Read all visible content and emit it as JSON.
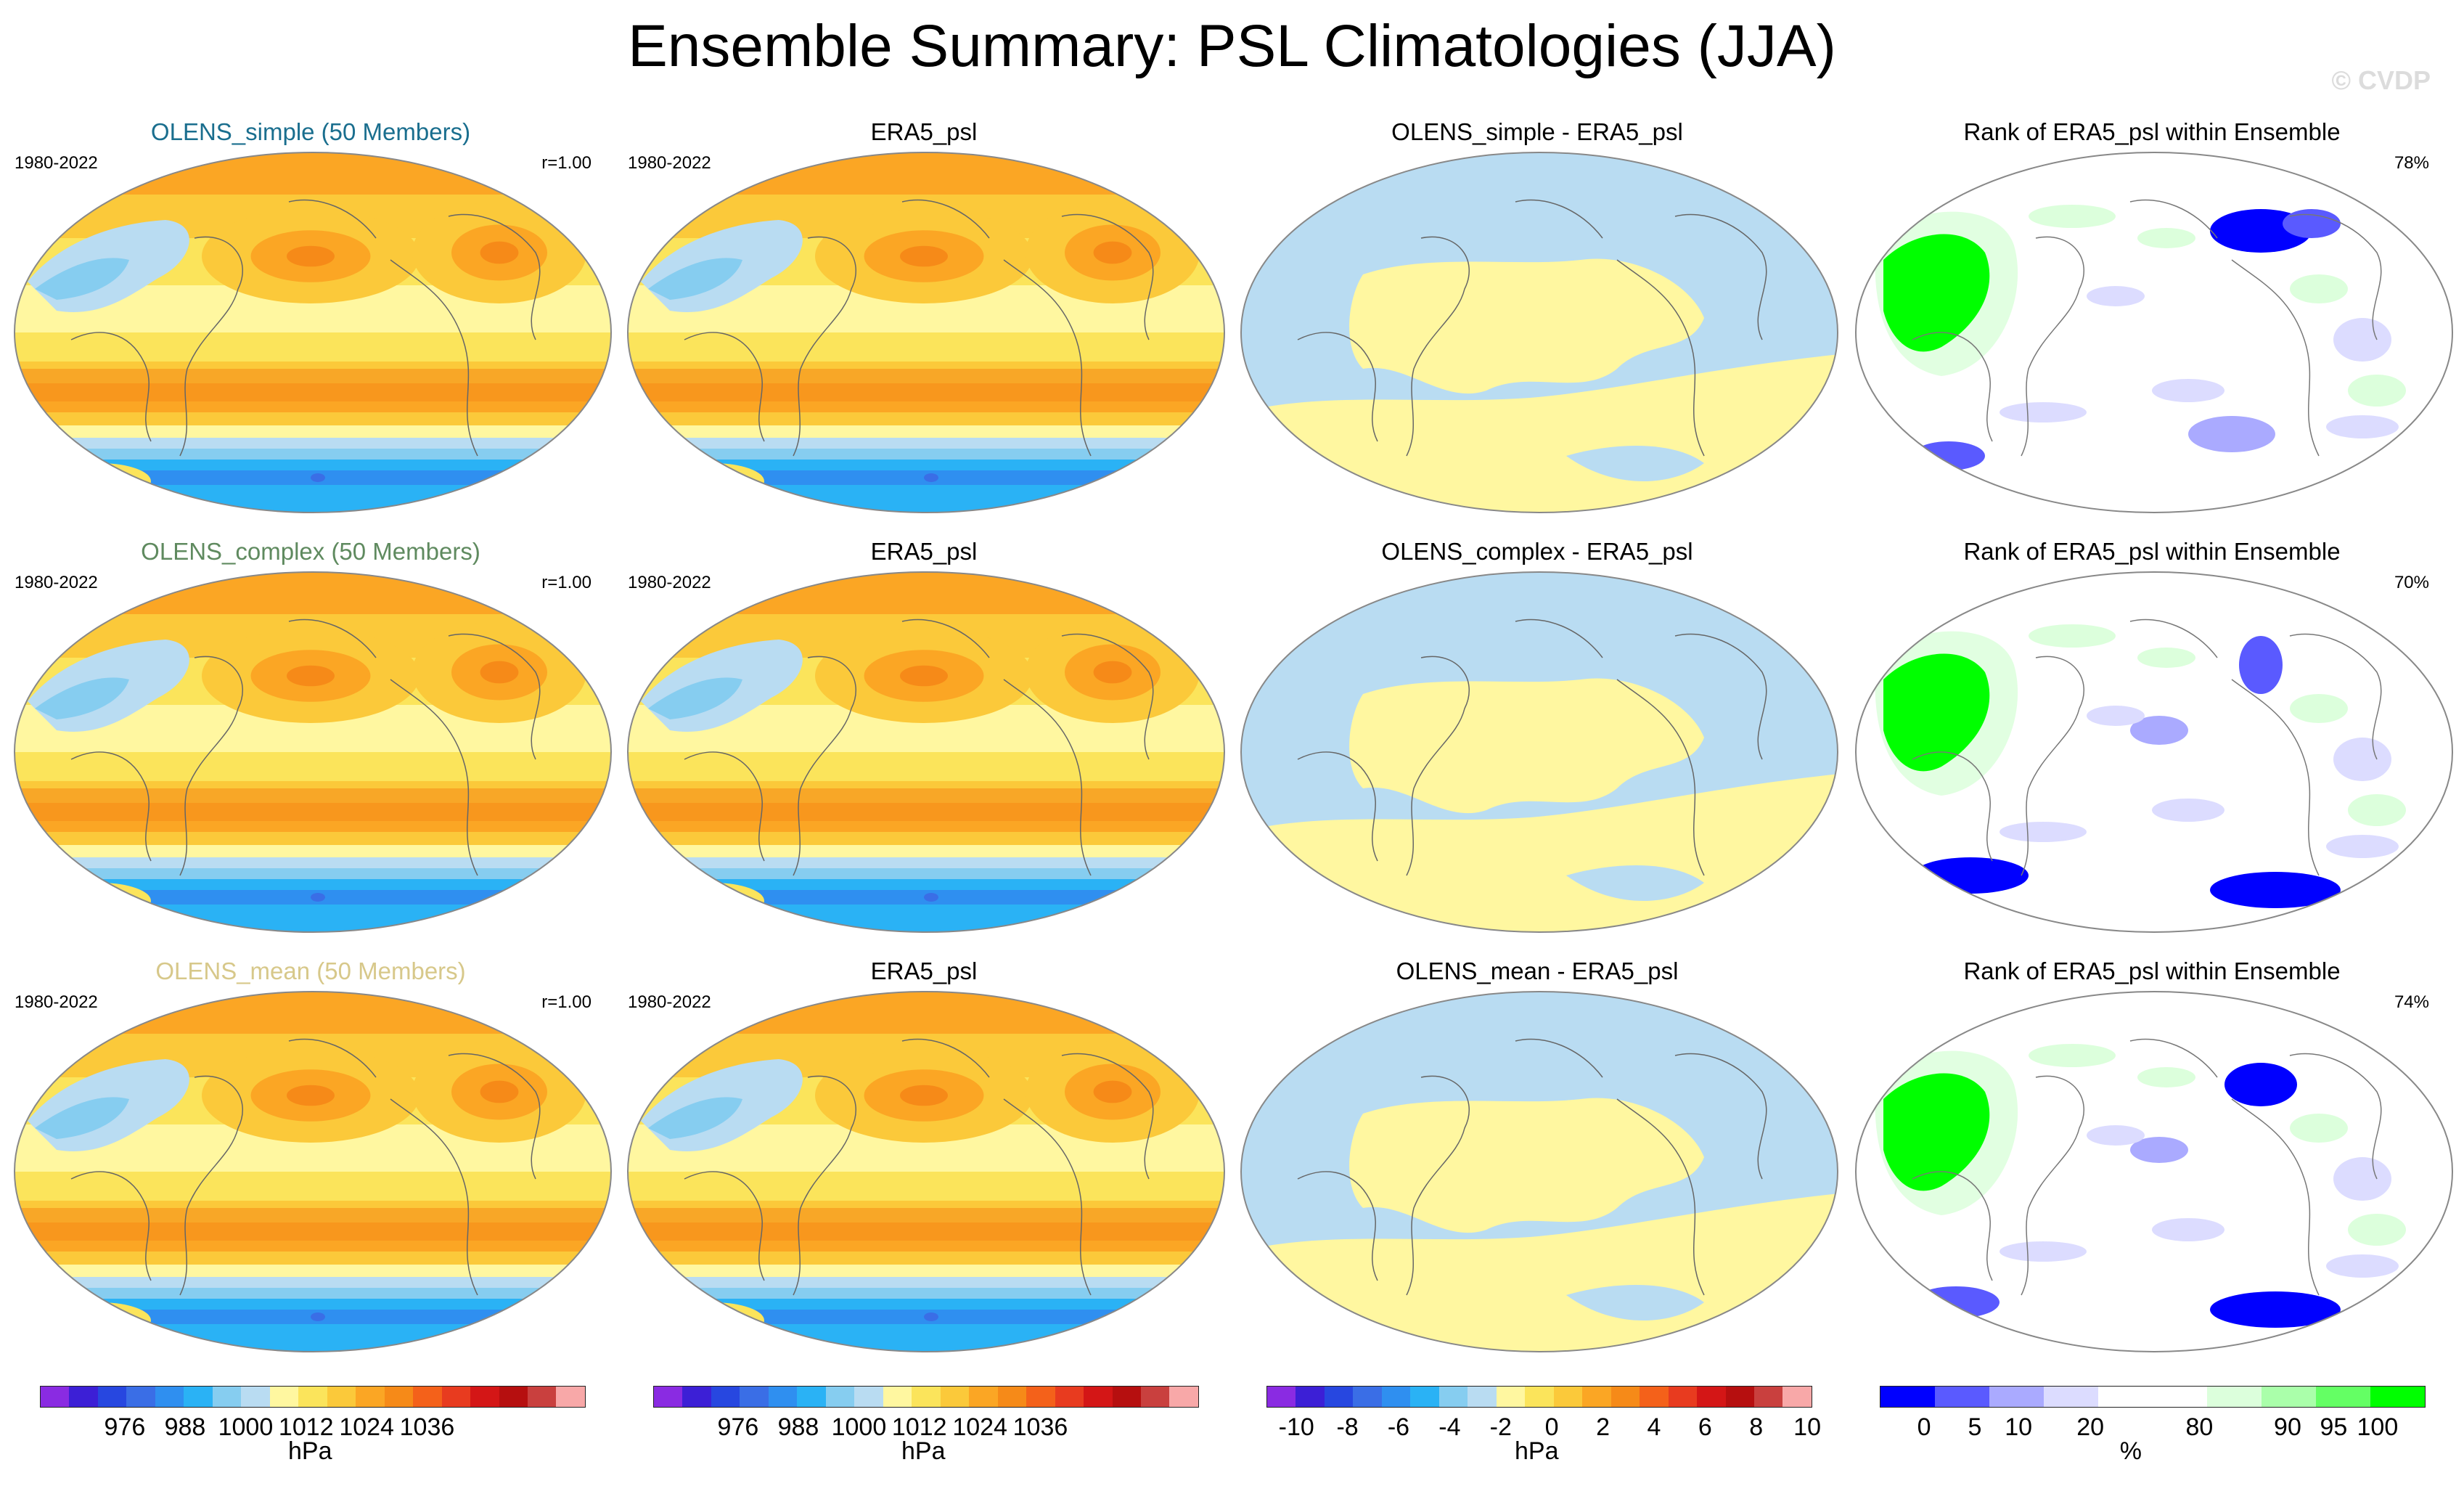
{
  "title": "Ensemble Summary: PSL Climatologies (JJA)",
  "watermark": "© CVDP",
  "colors": {
    "palette19": [
      "#8a2be2",
      "#3c1fd6",
      "#2747e0",
      "#3a6ee6",
      "#2f8ff0",
      "#2ab2f5",
      "#86cdf0",
      "#b9dcf2",
      "#fff7a0",
      "#fbe45b",
      "#fbc93a",
      "#fba624",
      "#f68a18",
      "#f4611a",
      "#e83b1f",
      "#d41616",
      "#b60f0f",
      "#c9403e",
      "#f8a8a8"
    ],
    "rank": [
      "#0000ff",
      "#5a5aff",
      "#aaaaff",
      "#dcdcff",
      "#ffffff",
      "#ffffff",
      "#dcffdc",
      "#aaffaa",
      "#64ff64",
      "#00ff00"
    ]
  },
  "rows": [
    {
      "model_title": "OLENS_simple (50 Members)",
      "model_color": "#1a6e8e",
      "era_title": "ERA5_psl",
      "diff_title": "OLENS_simple - ERA5_psl",
      "rank_title": "Rank of ERA5_psl within Ensemble",
      "years_model": "1980-2022",
      "years_era": "1980-2022",
      "r_label": "r=1.00",
      "rank_pct": "78%"
    },
    {
      "model_title": "OLENS_complex (50 Members)",
      "model_color": "#5f8a5f",
      "era_title": "ERA5_psl",
      "diff_title": "OLENS_complex - ERA5_psl",
      "rank_title": "Rank of ERA5_psl within Ensemble",
      "years_model": "1980-2022",
      "years_era": "1980-2022",
      "r_label": "r=1.00",
      "rank_pct": "70%"
    },
    {
      "model_title": "OLENS_mean (50 Members)",
      "model_color": "#d7c88a",
      "era_title": "ERA5_psl",
      "diff_title": "OLENS_mean - ERA5_psl",
      "rank_title": "Rank of ERA5_psl within Ensemble",
      "years_model": "1980-2022",
      "years_era": "1980-2022",
      "r_label": "r=1.00",
      "rank_pct": "74%"
    }
  ],
  "colorbars": [
    {
      "ticks": [
        "976",
        "988",
        "1000",
        "1012",
        "1024",
        "1036"
      ],
      "tick_pos": [
        0.1555,
        0.2659,
        0.3769,
        0.4877,
        0.5986,
        0.7094
      ],
      "unit": "hPa"
    },
    {
      "ticks": [
        "976",
        "988",
        "1000",
        "1012",
        "1024",
        "1036"
      ],
      "tick_pos": [
        0.1555,
        0.2659,
        0.3769,
        0.4877,
        0.5986,
        0.7094
      ],
      "unit": "hPa"
    },
    {
      "ticks": [
        "-10",
        "-8",
        "-6",
        "-4",
        "-2",
        "0",
        "2",
        "4",
        "6",
        "8",
        "10"
      ],
      "tick_pos": [
        0.0548,
        0.1484,
        0.242,
        0.3356,
        0.4292,
        0.5228,
        0.6164,
        0.71,
        0.8036,
        0.8972,
        0.9908
      ],
      "unit": "hPa"
    },
    {
      "ticks": [
        "0",
        "5",
        "10",
        "20",
        "80",
        "90",
        "95",
        "100"
      ],
      "tick_pos": [
        0.0813,
        0.1742,
        0.2542,
        0.3858,
        0.5856,
        0.7473,
        0.8316,
        0.9121
      ],
      "unit": "%"
    }
  ],
  "chart_data": {
    "type": "heatmap",
    "projection": "global map (Robinson/Winkel-type), Pacific-centered",
    "panels": [
      {
        "row": 0,
        "col": 0,
        "title": "OLENS_simple (50 Members)",
        "field": "PSL JJA climatology",
        "units": "hPa",
        "period": "1980-2022",
        "pattern_correlation": 1.0
      },
      {
        "row": 0,
        "col": 1,
        "title": "ERA5_psl",
        "field": "PSL JJA climatology",
        "units": "hPa",
        "period": "1980-2022"
      },
      {
        "row": 0,
        "col": 2,
        "title": "OLENS_simple - ERA5_psl",
        "field": "difference",
        "units": "hPa"
      },
      {
        "row": 0,
        "col": 3,
        "title": "Rank of ERA5_psl within Ensemble",
        "units": "%",
        "area_within_ensemble_percent": 78
      },
      {
        "row": 1,
        "col": 0,
        "title": "OLENS_complex (50 Members)",
        "field": "PSL JJA climatology",
        "units": "hPa",
        "period": "1980-2022",
        "pattern_correlation": 1.0
      },
      {
        "row": 1,
        "col": 1,
        "title": "ERA5_psl",
        "field": "PSL JJA climatology",
        "units": "hPa",
        "period": "1980-2022"
      },
      {
        "row": 1,
        "col": 2,
        "title": "OLENS_complex - ERA5_psl",
        "field": "difference",
        "units": "hPa"
      },
      {
        "row": 1,
        "col": 3,
        "title": "Rank of ERA5_psl within Ensemble",
        "units": "%",
        "area_within_ensemble_percent": 70
      },
      {
        "row": 2,
        "col": 0,
        "title": "OLENS_mean (50 Members)",
        "field": "PSL JJA climatology",
        "units": "hPa",
        "period": "1980-2022",
        "pattern_correlation": 1.0
      },
      {
        "row": 2,
        "col": 1,
        "title": "ERA5_psl",
        "field": "PSL JJA climatology",
        "units": "hPa",
        "period": "1980-2022"
      },
      {
        "row": 2,
        "col": 2,
        "title": "OLENS_mean - ERA5_psl",
        "field": "difference",
        "units": "hPa"
      },
      {
        "row": 2,
        "col": 3,
        "title": "Rank of ERA5_psl within Ensemble",
        "units": "%",
        "area_within_ensemble_percent": 74
      }
    ],
    "colorbar_psl": {
      "units": "hPa",
      "labels": [
        976,
        988,
        1000,
        1012,
        1024,
        1036
      ],
      "range": [
        964,
        1048
      ],
      "interval": 4
    },
    "colorbar_diff": {
      "units": "hPa",
      "labels": [
        -10,
        -8,
        -6,
        -4,
        -2,
        0,
        2,
        4,
        6,
        8,
        10
      ],
      "interval": 1
    },
    "colorbar_rank": {
      "units": "%",
      "labels": [
        0,
        5,
        10,
        20,
        80,
        90,
        95,
        100
      ]
    }
  }
}
